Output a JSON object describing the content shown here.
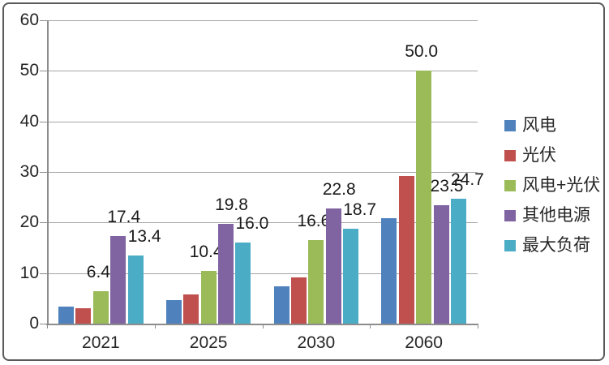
{
  "chart_data": {
    "type": "bar",
    "title": "",
    "xlabel": "",
    "ylabel": "",
    "categories": [
      "2021",
      "2025",
      "2030",
      "2060"
    ],
    "series": [
      {
        "name": "风电",
        "color": "#4F81BD",
        "values": [
          3.3,
          4.7,
          7.4,
          20.8
        ],
        "show_labels": false
      },
      {
        "name": "光伏",
        "color": "#C0504D",
        "values": [
          3.1,
          5.7,
          9.2,
          29.2
        ],
        "show_labels": false
      },
      {
        "name": "风电+光伏",
        "color": "#9BBB59",
        "values": [
          6.4,
          10.4,
          16.6,
          50.0
        ],
        "show_labels": true
      },
      {
        "name": "其他电源",
        "color": "#8064A2",
        "values": [
          17.4,
          19.8,
          22.8,
          23.5
        ],
        "show_labels": true
      },
      {
        "name": "最大负荷",
        "color": "#4BACC6",
        "values": [
          13.4,
          16.0,
          18.7,
          24.7
        ],
        "show_labels": true
      }
    ],
    "data_labels": {
      "风电+光伏": [
        "6.4",
        "10.4",
        "16.6",
        "50.0"
      ],
      "其他电源": [
        "17.4",
        "19.8",
        "22.8",
        "23.5"
      ],
      "最大负荷": [
        "13.4",
        "16.0",
        "18.7",
        "24.7"
      ]
    },
    "y_axis": {
      "min": 0,
      "max": 60,
      "step": 10,
      "tick_labels": [
        "0",
        "10",
        "20",
        "30",
        "40",
        "50",
        "60"
      ]
    },
    "legend": {
      "position": "right",
      "items": [
        "风电",
        "光伏",
        "风电+光伏",
        "其他电源",
        "最大负荷"
      ]
    },
    "grid": true
  },
  "colors": {
    "axis": "#8C8C8C",
    "gridline": "#A6A6A6",
    "text": "#262626",
    "border": "#595959",
    "background": "#FFFFFF"
  }
}
